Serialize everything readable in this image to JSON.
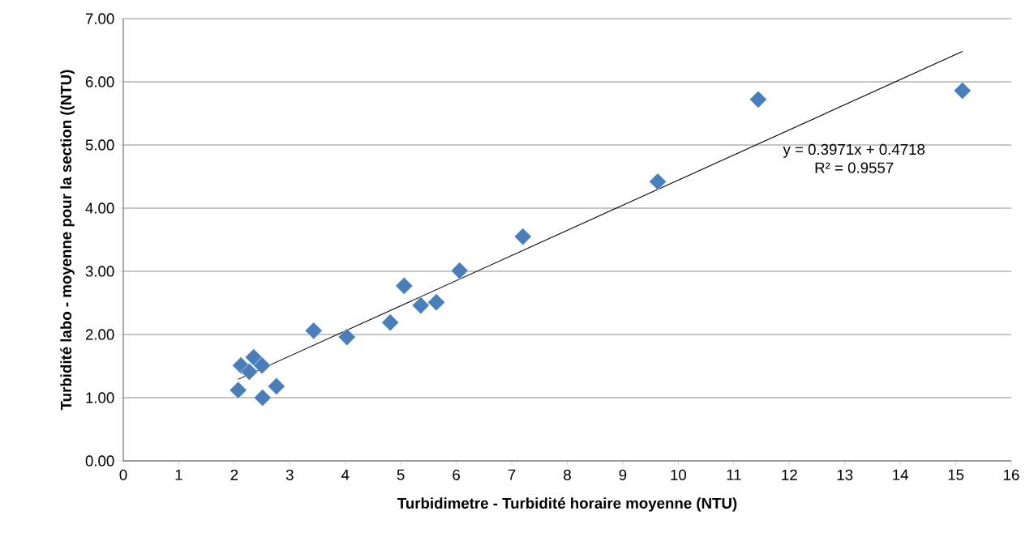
{
  "chart_data": {
    "type": "scatter",
    "xlabel": "Turbidimetre - Turbidité horaire moyenne (NTU)",
    "ylabel": "Turbidité labo - moyenne pour la section ((NTU)",
    "xlim": [
      0,
      16
    ],
    "ylim": [
      0,
      7
    ],
    "xticks": [
      0,
      1,
      2,
      3,
      4,
      5,
      6,
      7,
      8,
      9,
      10,
      11,
      12,
      13,
      14,
      15,
      16
    ],
    "yticks": [
      {
        "value": 0,
        "label": "0.00"
      },
      {
        "value": 1,
        "label": "1.00"
      },
      {
        "value": 2,
        "label": "2.00"
      },
      {
        "value": 3,
        "label": "3.00"
      },
      {
        "value": 4,
        "label": "4.00"
      },
      {
        "value": 5,
        "label": "5.00"
      },
      {
        "value": 6,
        "label": "6.00"
      },
      {
        "value": 7,
        "label": "7.00"
      }
    ],
    "grid": "y",
    "marker": "diamond",
    "annotations": [
      "y = 0.3971x + 0.4718",
      "R² = 0.9557"
    ],
    "series": [
      {
        "color": "#4a7ebb",
        "x": [
          2.07,
          2.12,
          2.35,
          2.27,
          2.5,
          2.51,
          2.76,
          3.43,
          4.03,
          4.81,
          5.06,
          5.36,
          5.64,
          6.06,
          7.2,
          9.63,
          11.44,
          15.12
        ],
        "values": [
          1.12,
          1.51,
          1.64,
          1.41,
          1.51,
          1.0,
          1.18,
          2.06,
          1.96,
          2.19,
          2.77,
          2.46,
          2.51,
          3.01,
          3.55,
          4.42,
          5.72,
          5.86
        ]
      },
      {
        "type": "line",
        "marker": "none",
        "color": "#000000",
        "x": [
          2.07,
          15.12
        ],
        "values": [
          1.29,
          6.48
        ]
      }
    ]
  }
}
